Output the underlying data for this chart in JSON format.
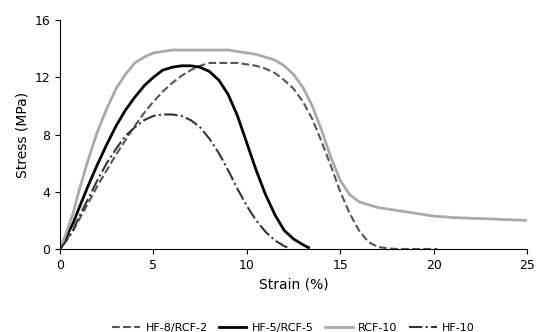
{
  "title": "",
  "xlabel": "Strain (%)",
  "ylabel": "Stress (MPa)",
  "xlim": [
    0,
    25
  ],
  "ylim": [
    0,
    16
  ],
  "xticks": [
    0,
    5,
    10,
    15,
    20,
    25
  ],
  "yticks": [
    0,
    4,
    8,
    12,
    16
  ],
  "background_color": "#ffffff",
  "series": [
    {
      "label": "HF-8/RCF-2",
      "color": "#555555",
      "linestyle": "--",
      "linewidth": 1.5,
      "x": [
        0,
        0.3,
        0.7,
        1,
        1.5,
        2,
        2.5,
        3,
        3.5,
        4,
        4.5,
        5,
        5.5,
        6,
        6.5,
        7,
        7.5,
        8,
        8.5,
        9,
        9.5,
        10,
        10.5,
        11,
        11.5,
        12,
        12.5,
        13,
        13.5,
        14,
        14.5,
        15,
        15.5,
        16,
        16.5,
        17,
        17.5,
        18,
        18.5,
        19,
        19.5,
        20,
        20.2
      ],
      "y": [
        0,
        0.6,
        1.3,
        2.0,
        3.2,
        4.4,
        5.5,
        6.6,
        7.6,
        8.6,
        9.5,
        10.3,
        11.0,
        11.6,
        12.1,
        12.5,
        12.8,
        13.0,
        13.0,
        13.0,
        13.0,
        12.9,
        12.8,
        12.6,
        12.3,
        11.8,
        11.2,
        10.3,
        9.1,
        7.5,
        5.8,
        4.0,
        2.5,
        1.3,
        0.5,
        0.15,
        0.05,
        0.0,
        0.0,
        0.0,
        0.0,
        0.0,
        0.0
      ]
    },
    {
      "label": "HF-5/RCF-5",
      "color": "#000000",
      "linestyle": "-",
      "linewidth": 2.0,
      "x": [
        0,
        0.3,
        0.7,
        1,
        1.5,
        2,
        2.5,
        3,
        3.5,
        4,
        4.5,
        5,
        5.5,
        6,
        6.5,
        7,
        7.5,
        8,
        8.5,
        9,
        9.5,
        10,
        10.5,
        11,
        11.5,
        12,
        12.5,
        13,
        13.3
      ],
      "y": [
        0,
        0.8,
        1.8,
        2.8,
        4.4,
        5.9,
        7.3,
        8.6,
        9.7,
        10.6,
        11.4,
        12.0,
        12.5,
        12.7,
        12.8,
        12.8,
        12.7,
        12.4,
        11.8,
        10.8,
        9.3,
        7.4,
        5.5,
        3.8,
        2.4,
        1.3,
        0.7,
        0.3,
        0.1
      ]
    },
    {
      "label": "RCF-10",
      "color": "#aaaaaa",
      "linestyle": "-",
      "linewidth": 2.0,
      "x": [
        0,
        0.3,
        0.7,
        1,
        1.5,
        2,
        2.5,
        3,
        3.5,
        4,
        4.5,
        5,
        5.5,
        6,
        6.5,
        7,
        7.5,
        8,
        8.5,
        9,
        9.5,
        10,
        10.5,
        11,
        11.5,
        12,
        12.5,
        13,
        13.5,
        14,
        14.5,
        15,
        15.5,
        16,
        16.5,
        17,
        17.5,
        18,
        18.5,
        19,
        19.5,
        20,
        21,
        22,
        23,
        24,
        25
      ],
      "y": [
        0,
        1.0,
        2.5,
        4.0,
        6.2,
        8.2,
        9.8,
        11.2,
        12.2,
        13.0,
        13.4,
        13.7,
        13.8,
        13.9,
        13.9,
        13.9,
        13.9,
        13.9,
        13.9,
        13.9,
        13.8,
        13.7,
        13.6,
        13.4,
        13.2,
        12.8,
        12.2,
        11.3,
        10.0,
        8.3,
        6.4,
        4.8,
        3.8,
        3.3,
        3.1,
        2.9,
        2.8,
        2.7,
        2.6,
        2.5,
        2.4,
        2.3,
        2.2,
        2.15,
        2.1,
        2.05,
        2.0
      ]
    },
    {
      "label": "HF-10",
      "color": "#333333",
      "linestyle": "-.",
      "linewidth": 1.5,
      "x": [
        0,
        0.3,
        0.7,
        1,
        1.5,
        2,
        2.5,
        3,
        3.5,
        4,
        4.5,
        5,
        5.5,
        6,
        6.5,
        7,
        7.5,
        8,
        8.5,
        9,
        9.5,
        10,
        10.5,
        11,
        11.5,
        12,
        12.3
      ],
      "y": [
        0,
        0.5,
        1.3,
        2.2,
        3.5,
        4.8,
        6.0,
        7.0,
        7.9,
        8.5,
        9.0,
        9.3,
        9.4,
        9.4,
        9.3,
        9.0,
        8.5,
        7.7,
        6.7,
        5.5,
        4.2,
        3.0,
        2.0,
        1.2,
        0.6,
        0.2,
        0.05
      ]
    }
  ]
}
